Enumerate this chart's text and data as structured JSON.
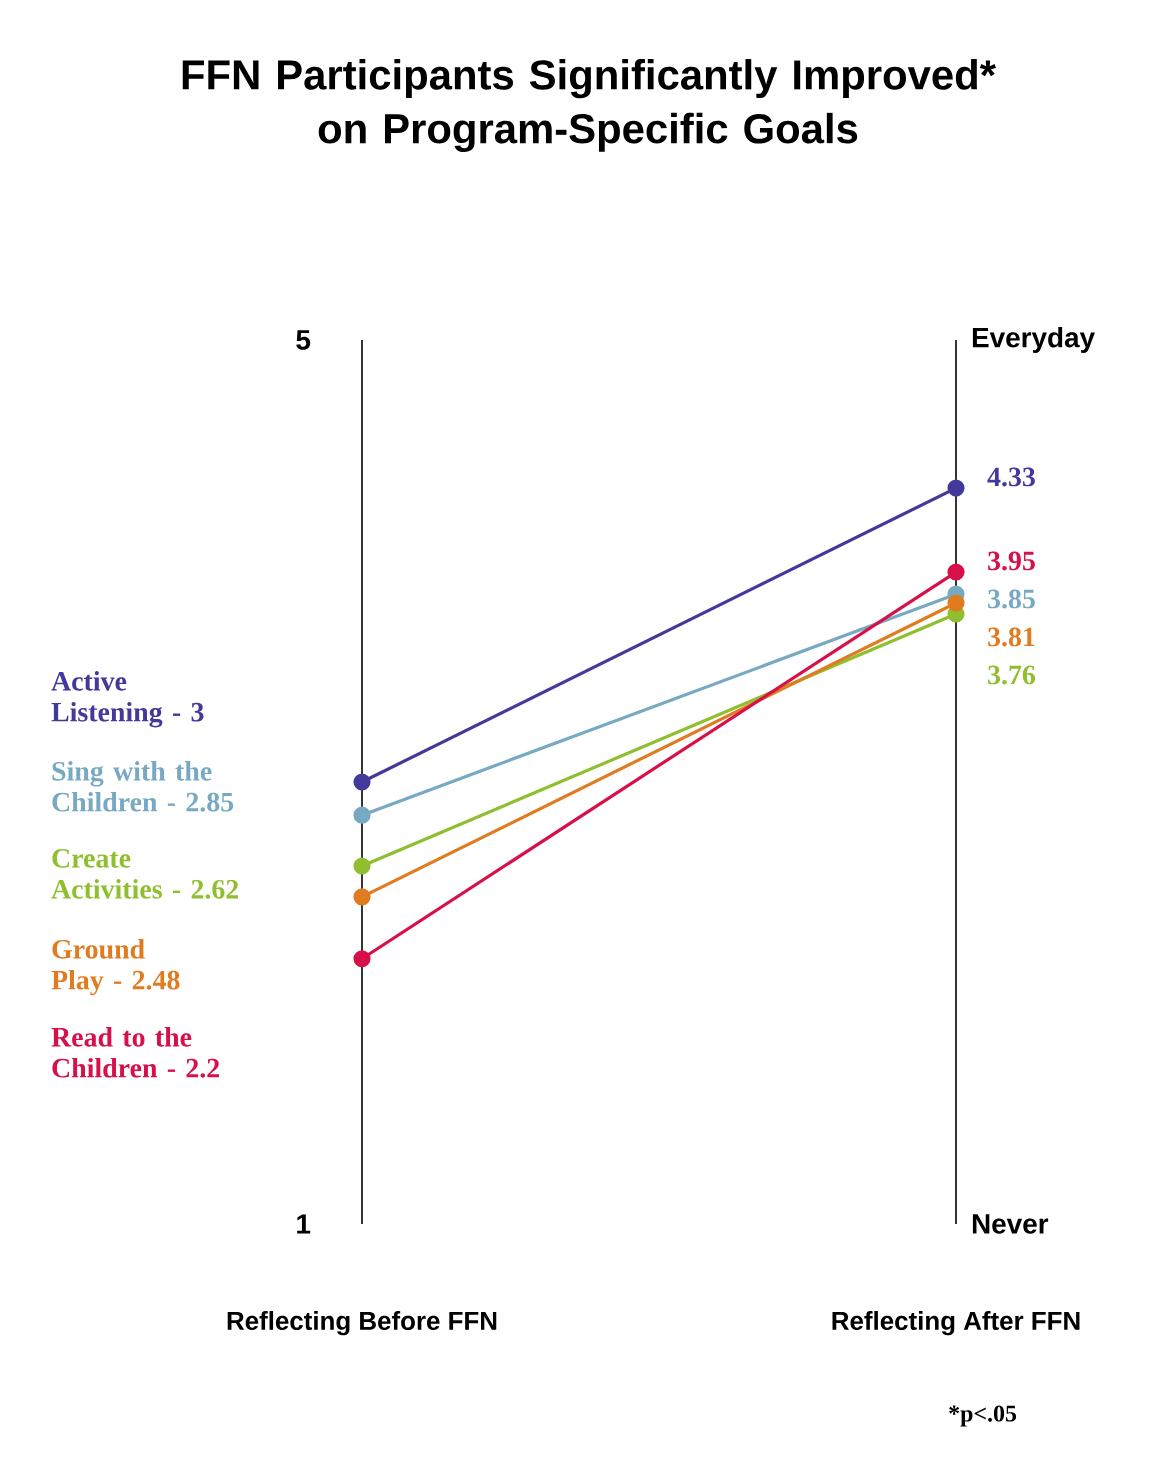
{
  "chart_data": {
    "type": "line",
    "title": "FFN Participants Significantly Improved*\non Program-Specific Goals",
    "categories": [
      "Reflecting Before FFN",
      "Reflecting After FFN"
    ],
    "series": [
      {
        "name": "Active\nListening - 3",
        "color": "#43399a",
        "values": [
          3,
          4.33
        ],
        "value_labels": [
          null,
          "4.33"
        ]
      },
      {
        "name": "Sing with the\nChildren - 2.85",
        "color": "#77a9c2",
        "values": [
          2.85,
          3.85
        ],
        "value_labels": [
          null,
          "3.85"
        ]
      },
      {
        "name": "Create\nActivities - 2.62",
        "color": "#8fbf2f",
        "values": [
          2.62,
          3.76
        ],
        "value_labels": [
          null,
          "3.76"
        ]
      },
      {
        "name": "Ground\nPlay - 2.48",
        "color": "#e07b1f",
        "values": [
          2.48,
          3.81
        ],
        "value_labels": [
          null,
          "3.81"
        ]
      },
      {
        "name": "Read to the\nChildren - 2.2",
        "color": "#d8104a",
        "values": [
          2.2,
          3.95
        ],
        "value_labels": [
          null,
          "3.95"
        ]
      }
    ],
    "ylim": [
      1,
      5
    ],
    "yticks": [
      1,
      5
    ],
    "marker": "circle",
    "line_style": "solid",
    "annotations": [
      "Everyday",
      "Never",
      "*p<.05"
    ]
  }
}
